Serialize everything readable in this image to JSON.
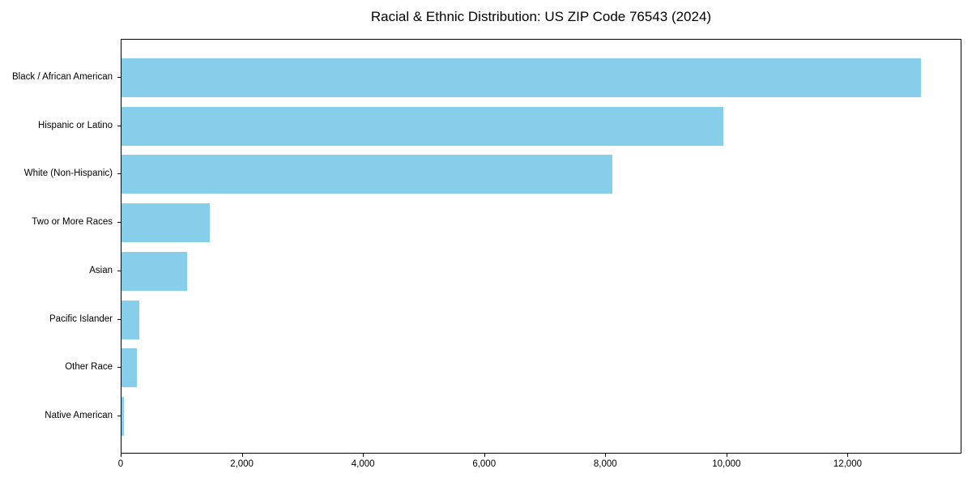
{
  "chart_data": {
    "type": "bar",
    "orientation": "horizontal",
    "title": "Racial & Ethnic Distribution: US ZIP Code 76543 (2024)",
    "categories": [
      "Black / African American",
      "Hispanic or Latino",
      "White (Non-Hispanic)",
      "Two or More Races",
      "Asian",
      "Pacific Islander",
      "Other Race",
      "Native American"
    ],
    "values": [
      13200,
      9940,
      8100,
      1460,
      1080,
      295,
      260,
      40
    ],
    "xlabel": "",
    "ylabel": "",
    "xlim": [
      0,
      13880
    ],
    "x_ticks": [
      0,
      2000,
      4000,
      6000,
      8000,
      10000,
      12000
    ],
    "x_tick_labels": [
      "0",
      "2,000",
      "4,000",
      "6,000",
      "8,000",
      "10,000",
      "12,000"
    ],
    "bar_color": "#87CEEB",
    "background_color": "#ffffff",
    "spine_color": "#000000",
    "grid": false,
    "legend": null
  }
}
